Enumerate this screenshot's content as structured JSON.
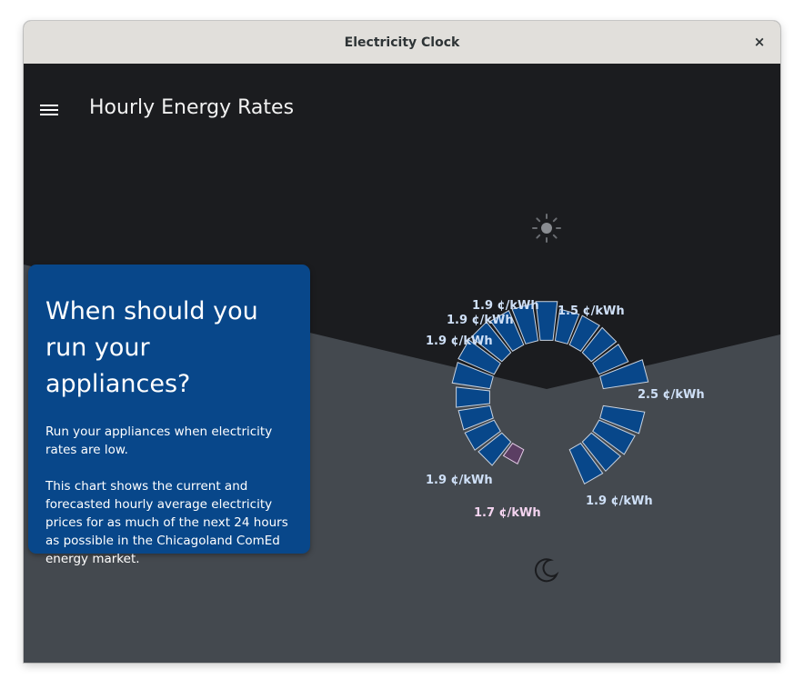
{
  "window": {
    "title": "Electricity Clock",
    "close_icon": "×"
  },
  "header": {
    "title": "Hourly Energy Rates",
    "menu_icon": "hamburger-menu-icon"
  },
  "info_card": {
    "heading": "When should you run your appliances?",
    "paragraph1": "Run your appliances when electricity rates are low.",
    "paragraph2": "This chart shows the current and forecasted hourly average electricity prices for as much of the next 24 hours as possible in the Chicagoland ComEd energy market."
  },
  "clock": {
    "day_icon": "sun-icon",
    "night_icon": "moon-icon",
    "labels": [
      {
        "text": "1.9 ¢/kWh",
        "kind": "forecast"
      },
      {
        "text": "1.9 ¢/kWh",
        "kind": "forecast"
      },
      {
        "text": "1.9 ¢/kWh",
        "kind": "forecast"
      },
      {
        "text": "1.5 ¢/kWh",
        "kind": "forecast"
      },
      {
        "text": "2.5 ¢/kWh",
        "kind": "forecast"
      },
      {
        "text": "1.9 ¢/kWh",
        "kind": "forecast"
      },
      {
        "text": "1.9 ¢/kWh",
        "kind": "forecast"
      },
      {
        "text": "1.7 ¢/kWh",
        "kind": "current"
      }
    ]
  },
  "colors": {
    "segment_fill": "#08478a",
    "segment_stroke": "#c9d3e0",
    "current_fill": "#5b3e63",
    "current_stroke": "#e3cbe6",
    "label_forecast": "#cfe0f7",
    "label_current": "#f4d4f0",
    "sky": "#1b1c1f",
    "ground": "#44494f"
  }
}
